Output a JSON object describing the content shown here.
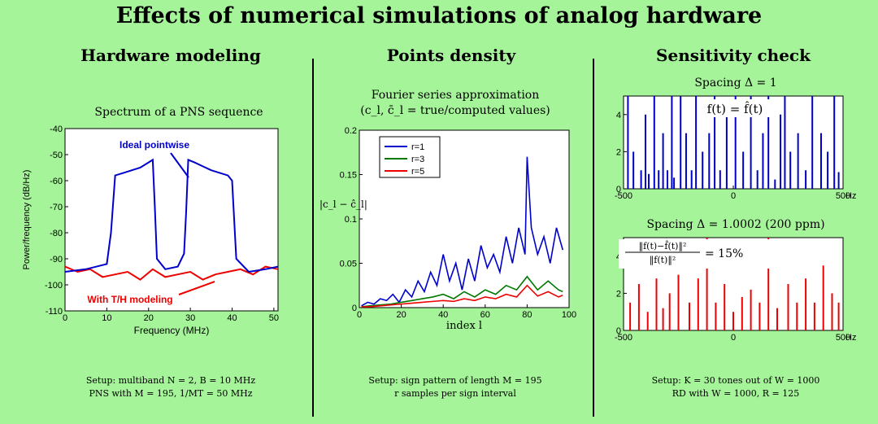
{
  "title": "Effects of numerical simulations of analog hardware",
  "columns": [
    {
      "title": "Hardware modeling"
    },
    {
      "title": "Points density"
    },
    {
      "title": "Sensitivity check"
    }
  ],
  "panel1": {
    "plot_title": "Spectrum of a PNS sequence",
    "annotation_ideal": "Ideal pointwise",
    "annotation_th": "With T/H modeling",
    "setup_line1": "Setup: multiband N = 2, B = 10 MHz",
    "setup_line2": "PNS with M = 195, 1/MT = 50 MHz"
  },
  "panel2": {
    "plot_title_line1": "Fourier series approximation",
    "plot_title_line2": "(c_l, c̄_l = true/computed values)",
    "setup_line1": "Setup: sign pattern of length M = 195",
    "setup_line2": "r samples per sign interval"
  },
  "panel3": {
    "top_title": "Spacing Δ = 1",
    "top_annotation": "f(t) = f̂(t)",
    "bottom_title": "Spacing Δ = 1.0002 (200 ppm)",
    "bottom_annotation_frac_num": "‖f(t)−f̂(t)‖²",
    "bottom_annotation_frac_den": "‖f(t)‖²",
    "bottom_annotation_value": "= 15%",
    "setup_line1": "Setup: K = 30 tones out of W = 1000",
    "setup_line2": "RD with W = 1000, R = 125"
  },
  "chart_data": [
    {
      "type": "line",
      "title": "Spectrum of a PNS sequence",
      "xlabel": "Frequency (MHz)",
      "ylabel": "Power/frequency (dB/Hz)",
      "xlim": [
        0,
        51
      ],
      "ylim": [
        -110,
        -40
      ],
      "xticks": [
        0,
        10,
        20,
        30,
        40,
        50
      ],
      "yticks": [
        -40,
        -50,
        -60,
        -70,
        -80,
        -90,
        -100,
        -110
      ],
      "series": [
        {
          "name": "Ideal pointwise",
          "color": "#0000cc",
          "x": [
            0,
            5,
            10,
            11,
            12,
            14,
            18,
            20,
            21,
            21.5,
            22,
            24,
            27,
            28.5,
            29,
            29.5,
            31,
            35,
            39,
            40,
            41,
            44,
            48,
            51
          ],
          "y": [
            -95,
            -94,
            -92,
            -80,
            -58,
            -57,
            -55,
            -53,
            -52,
            -70,
            -90,
            -94,
            -93,
            -88,
            -72,
            -52,
            -53,
            -56,
            -58,
            -60,
            -90,
            -95,
            -94,
            -93
          ]
        },
        {
          "name": "With T/H modeling",
          "color": "#ee0000",
          "x": [
            0,
            3,
            6,
            9,
            12,
            15,
            18,
            21,
            24,
            27,
            30,
            33,
            36,
            39,
            42,
            45,
            48,
            51
          ],
          "y": [
            -93,
            -95,
            -94,
            -97,
            -96,
            -95,
            -98,
            -94,
            -97,
            -96,
            -95,
            -98,
            -96,
            -95,
            -94,
            -96,
            -93,
            -94
          ]
        }
      ]
    },
    {
      "type": "line",
      "title": "Fourier series approximation",
      "xlabel": "index l",
      "ylabel": "|c_l − ĉ_l|",
      "xlim": [
        0,
        100
      ],
      "ylim": [
        0,
        0.2
      ],
      "xticks": [
        0,
        20,
        40,
        60,
        80,
        100
      ],
      "yticks": [
        0,
        0.05,
        0.1,
        0.15,
        0.2
      ],
      "yticklabels": [
        "0",
        "0.05",
        "0.1",
        "0.15",
        "0.2"
      ],
      "legend": "top-left",
      "series": [
        {
          "name": "r=1",
          "color": "#0000cc",
          "x": [
            1,
            4,
            7,
            10,
            13,
            16,
            19,
            22,
            25,
            28,
            31,
            34,
            37,
            40,
            43,
            46,
            49,
            52,
            55,
            58,
            61,
            64,
            67,
            70,
            73,
            76,
            79,
            80,
            82,
            85,
            88,
            91,
            94,
            97
          ],
          "y": [
            0.002,
            0.006,
            0.004,
            0.01,
            0.008,
            0.015,
            0.006,
            0.02,
            0.012,
            0.03,
            0.018,
            0.04,
            0.025,
            0.06,
            0.03,
            0.05,
            0.02,
            0.055,
            0.03,
            0.07,
            0.045,
            0.06,
            0.04,
            0.08,
            0.05,
            0.09,
            0.06,
            0.17,
            0.09,
            0.06,
            0.08,
            0.05,
            0.09,
            0.065
          ]
        },
        {
          "name": "r=3",
          "color": "#007700",
          "x": [
            1,
            5,
            10,
            15,
            20,
            25,
            30,
            35,
            40,
            45,
            50,
            55,
            60,
            65,
            70,
            75,
            80,
            85,
            90,
            95,
            97
          ],
          "y": [
            0.001,
            0.002,
            0.003,
            0.004,
            0.006,
            0.008,
            0.01,
            0.012,
            0.015,
            0.01,
            0.018,
            0.012,
            0.02,
            0.015,
            0.025,
            0.02,
            0.035,
            0.02,
            0.03,
            0.02,
            0.018
          ]
        },
        {
          "name": "r=5",
          "color": "#ee0000",
          "x": [
            1,
            5,
            10,
            15,
            20,
            25,
            30,
            35,
            40,
            45,
            50,
            55,
            60,
            65,
            70,
            75,
            80,
            85,
            90,
            95,
            97
          ],
          "y": [
            0.001,
            0.001,
            0.002,
            0.003,
            0.004,
            0.005,
            0.006,
            0.007,
            0.008,
            0.007,
            0.01,
            0.008,
            0.012,
            0.01,
            0.015,
            0.012,
            0.025,
            0.013,
            0.018,
            0.012,
            0.014
          ]
        }
      ]
    },
    {
      "type": "bar",
      "title": "Spacing Δ = 1",
      "xlim": [
        -500,
        500
      ],
      "ylim": [
        0,
        5
      ],
      "xticks": [
        -500,
        0,
        500
      ],
      "yticks": [
        0,
        2,
        4
      ],
      "xunit": "Hz",
      "color": "#0000cc",
      "x": [
        -480,
        -455,
        -420,
        -400,
        -385,
        -360,
        -340,
        -320,
        -300,
        -280,
        -270,
        -240,
        -215,
        -190,
        -170,
        -140,
        -110,
        -85,
        -60,
        -30,
        10,
        45,
        80,
        110,
        135,
        160,
        190,
        215,
        235,
        260,
        295,
        330,
        360,
        400,
        430,
        460,
        480
      ],
      "values": [
        5,
        2,
        1,
        4,
        0.8,
        5,
        1,
        3,
        1,
        5,
        0.6,
        5,
        3,
        1,
        5,
        2,
        3,
        5,
        1,
        4,
        5,
        2,
        5,
        1,
        3,
        5,
        0.5,
        4,
        5,
        2,
        3,
        1,
        5,
        3,
        2,
        5,
        0.9
      ]
    },
    {
      "type": "bar",
      "title": "Spacing Δ = 1.0002 (200 ppm)",
      "xlim": [
        -500,
        500
      ],
      "ylim": [
        0,
        5
      ],
      "xticks": [
        -500,
        0,
        500
      ],
      "yticks": [
        0,
        2,
        4
      ],
      "xunit": "Hz",
      "color": "#ee0000",
      "x": [
        -470,
        -430,
        -390,
        -350,
        -320,
        -290,
        -250,
        -200,
        -160,
        -120,
        -80,
        -40,
        0,
        40,
        80,
        120,
        160,
        200,
        250,
        290,
        330,
        370,
        410,
        450,
        480
      ],
      "values": [
        1.5,
        2.5,
        1,
        2.8,
        1.2,
        2,
        3,
        1.5,
        2.8,
        5,
        1.5,
        2.5,
        1,
        1.8,
        2.2,
        1.5,
        5,
        1.2,
        2.5,
        1.5,
        2.8,
        1.5,
        3.5,
        2,
        1.5
      ]
    }
  ]
}
